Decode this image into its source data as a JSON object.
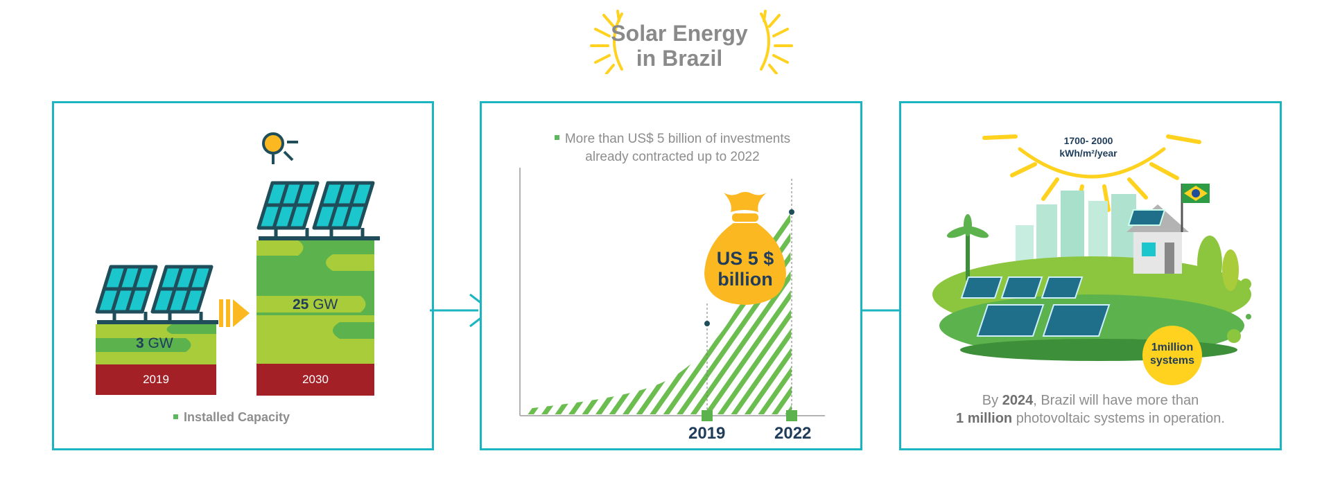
{
  "header": {
    "title_line1": "Solar Energy",
    "title_line2": "in Brazil"
  },
  "panel1": {
    "bars": [
      {
        "year": "2019",
        "value": "3",
        "unit": "GW"
      },
      {
        "year": "2030",
        "value": "25",
        "unit": "GW"
      }
    ],
    "caption": "Installed Capacity"
  },
  "panel2": {
    "caption_line1": "More than US$ 5 billion of investments",
    "caption_line2": "already contracted up to 2022",
    "money_line1": "US 5 $",
    "money_line2": "billion",
    "x_labels": [
      "2019",
      "2022"
    ]
  },
  "panel3": {
    "irradiation_line1": "1700- 2000",
    "irradiation_line2": "kWh/m²/year",
    "systems_line1": "1million",
    "systems_line2": "systems",
    "text_pre": "By ",
    "text_year": "2024",
    "text_mid": ", Brazil will have more than",
    "text_bold": "1 million",
    "text_end": " photovoltaic systems in operation."
  },
  "colors": {
    "frame": "#1ab5c1",
    "green_dark": "#5cb24d",
    "green_light": "#a9cc3a",
    "year_red": "#a32026",
    "sun_yellow": "#ffd21f",
    "money_bag": "#fbb820",
    "panel_teal": "#1bc6cc",
    "text_navy": "#1f3c5a"
  },
  "icons": [
    "sun-icon",
    "solar-panel-icon",
    "arrow-icon",
    "money-bag-icon",
    "house-icon",
    "brazil-flag-icon",
    "palm-tree-icon"
  ]
}
